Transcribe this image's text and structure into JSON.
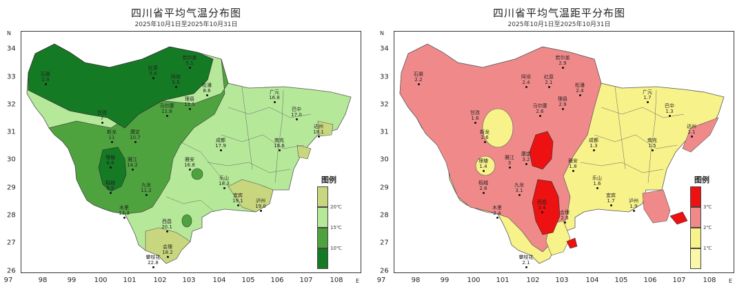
{
  "maps": [
    {
      "title": "四川省平均气温分布图",
      "subtitle": "2025年10月1日至2025年10月31日",
      "legend": {
        "title": "图例",
        "entries": [
          {
            "label": "20℃",
            "color": "#c8d67e"
          },
          {
            "label": "15℃",
            "color": "#b6e89a"
          },
          {
            "label": "10℃",
            "color": "#4fa33f"
          },
          {
            "label": "",
            "color": "#157a24"
          }
        ]
      },
      "zones": [
        {
          "name": "cold-high",
          "color": "#157a24"
        },
        {
          "name": "cool",
          "color": "#4fa33f"
        },
        {
          "name": "mild",
          "color": "#b6e89a"
        },
        {
          "name": "warm",
          "color": "#c8d67e"
        }
      ],
      "stations": [
        {
          "name": "若尔盖",
          "value": "5.1"
        },
        {
          "name": "红原",
          "value": "5.4"
        },
        {
          "name": "石渠",
          "value": "2.9"
        },
        {
          "name": "阿坝",
          "value": "5.5"
        },
        {
          "name": "松潘",
          "value": "8.6"
        },
        {
          "name": "甘孜",
          "value": "7"
        },
        {
          "name": "马尔康",
          "value": "11.8"
        },
        {
          "name": "理县",
          "value": "12.5"
        },
        {
          "name": "新龙",
          "value": "11"
        },
        {
          "name": "康定",
          "value": "10.7"
        },
        {
          "name": "理塘",
          "value": "6.6"
        },
        {
          "name": "稻城",
          "value": "8.0"
        },
        {
          "name": "雅江",
          "value": "14.2"
        },
        {
          "name": "九龙",
          "value": "11.2"
        },
        {
          "name": "木里",
          "value": "13.3"
        },
        {
          "name": "西昌",
          "value": "20.1"
        },
        {
          "name": "会理",
          "value": "18.2"
        },
        {
          "name": "攀枝花",
          "value": "22.8"
        },
        {
          "name": "广元",
          "value": "16.8"
        },
        {
          "name": "巴中",
          "value": "17.0"
        },
        {
          "name": "达州",
          "value": "18.1"
        },
        {
          "name": "南充",
          "value": "18.6"
        },
        {
          "name": "成都",
          "value": "17.9"
        },
        {
          "name": "雅安",
          "value": "16.8"
        },
        {
          "name": "乐山",
          "value": "18.3"
        },
        {
          "name": "宜宾",
          "value": "19.1"
        },
        {
          "name": "泸州",
          "value": "19.0"
        }
      ]
    },
    {
      "title": "四川省平均气温距平分布图",
      "subtitle": "2025年10月1日至2025年10月31日",
      "legend": {
        "title": "图例",
        "entries": [
          {
            "label": "3℃",
            "color": "#ee1111"
          },
          {
            "label": "2℃",
            "color": "#f08a8a"
          },
          {
            "label": "1℃",
            "color": "#f7f28a"
          },
          {
            "label": "",
            "color": "#fbf7a8"
          }
        ]
      },
      "zones": [
        {
          "name": "anomaly-2",
          "color": "#f08a8a"
        },
        {
          "name": "anomaly-1",
          "color": "#f7f28a"
        },
        {
          "name": "anomaly-3",
          "color": "#ee1111"
        }
      ],
      "stations": [
        {
          "name": "若尔盖",
          "value": "2.9"
        },
        {
          "name": "石渠",
          "value": "2.2"
        },
        {
          "name": "阿坝",
          "value": "2.4"
        },
        {
          "name": "红原",
          "value": "2.1"
        },
        {
          "name": "松潘",
          "value": "2.4"
        },
        {
          "name": "马尔康",
          "value": "2.6"
        },
        {
          "name": "理县",
          "value": "2.9"
        },
        {
          "name": "甘孜",
          "value": "1.6"
        },
        {
          "name": "新龙",
          "value": "2.6"
        },
        {
          "name": "康定",
          "value": "3.2"
        },
        {
          "name": "雅江",
          "value": "3"
        },
        {
          "name": "理塘",
          "value": "1.4"
        },
        {
          "name": "稻城",
          "value": "2.6"
        },
        {
          "name": "九龙",
          "value": "3.1"
        },
        {
          "name": "木里",
          "value": "2.4"
        },
        {
          "name": "西昌",
          "value": "3.4"
        },
        {
          "name": "会理",
          "value": "2.8"
        },
        {
          "name": "攀枝花",
          "value": "2.1"
        },
        {
          "name": "广元",
          "value": "1.7"
        },
        {
          "name": "巴中",
          "value": "1.3"
        },
        {
          "name": "达州",
          "value": "2.1"
        },
        {
          "name": "南充",
          "value": "1.5"
        },
        {
          "name": "成都",
          "value": "1.3"
        },
        {
          "name": "雅安",
          "value": "1.8"
        },
        {
          "name": "乐山",
          "value": "1.6"
        },
        {
          "name": "宜宾",
          "value": "1.7"
        },
        {
          "name": "泸州",
          "value": "1.9"
        }
      ]
    }
  ],
  "axes": {
    "x_ticks": [
      "97",
      "98",
      "99",
      "100",
      "101",
      "102",
      "103",
      "104",
      "105",
      "106",
      "107",
      "108"
    ],
    "y_ticks": [
      "34",
      "33",
      "32",
      "31",
      "30",
      "29",
      "28",
      "27",
      "26"
    ],
    "x_unit": "E",
    "y_unit": "N"
  }
}
